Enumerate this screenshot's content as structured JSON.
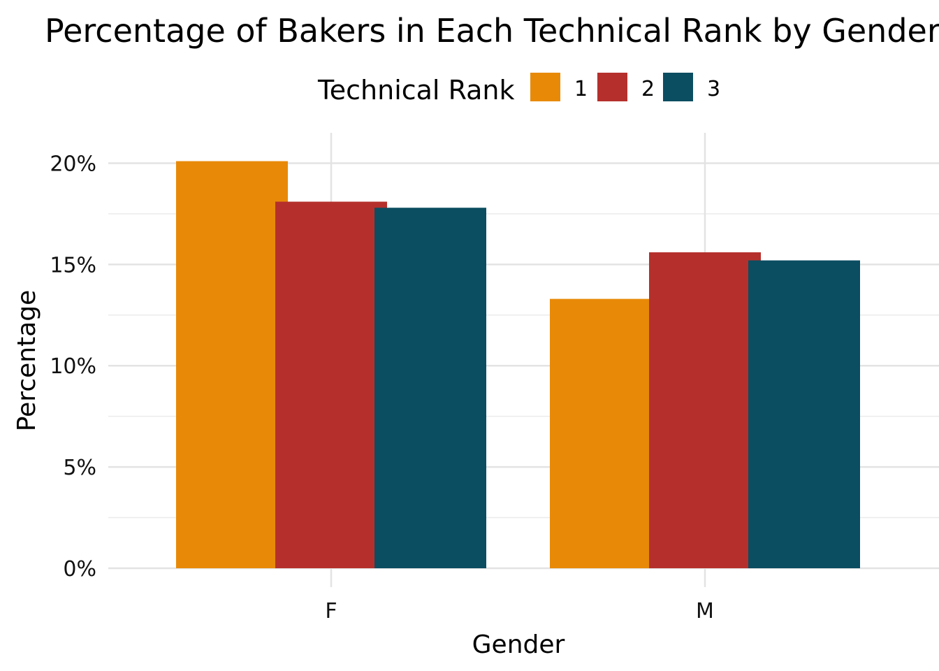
{
  "chart_data": {
    "type": "bar",
    "title": "Percentage of Bakers in Each Technical Rank by Gender",
    "xlabel": "Gender",
    "ylabel": "Percentage",
    "categories": [
      "F",
      "M"
    ],
    "legend_title": "Technical Rank",
    "legend_position": "top",
    "series": [
      {
        "name": "1",
        "color": "#E88A08",
        "values": [
          20.1,
          13.3
        ]
      },
      {
        "name": "2",
        "color": "#B5302C",
        "values": [
          18.1,
          15.6
        ]
      },
      {
        "name": "3",
        "color": "#0B4D61",
        "values": [
          17.8,
          15.2
        ]
      }
    ],
    "ylim": [
      0,
      21.5
    ],
    "yticks": [
      0,
      5,
      10,
      15,
      20
    ],
    "ytick_labels": [
      "0%",
      "5%",
      "10%",
      "15%",
      "20%"
    ],
    "grid": true
  }
}
